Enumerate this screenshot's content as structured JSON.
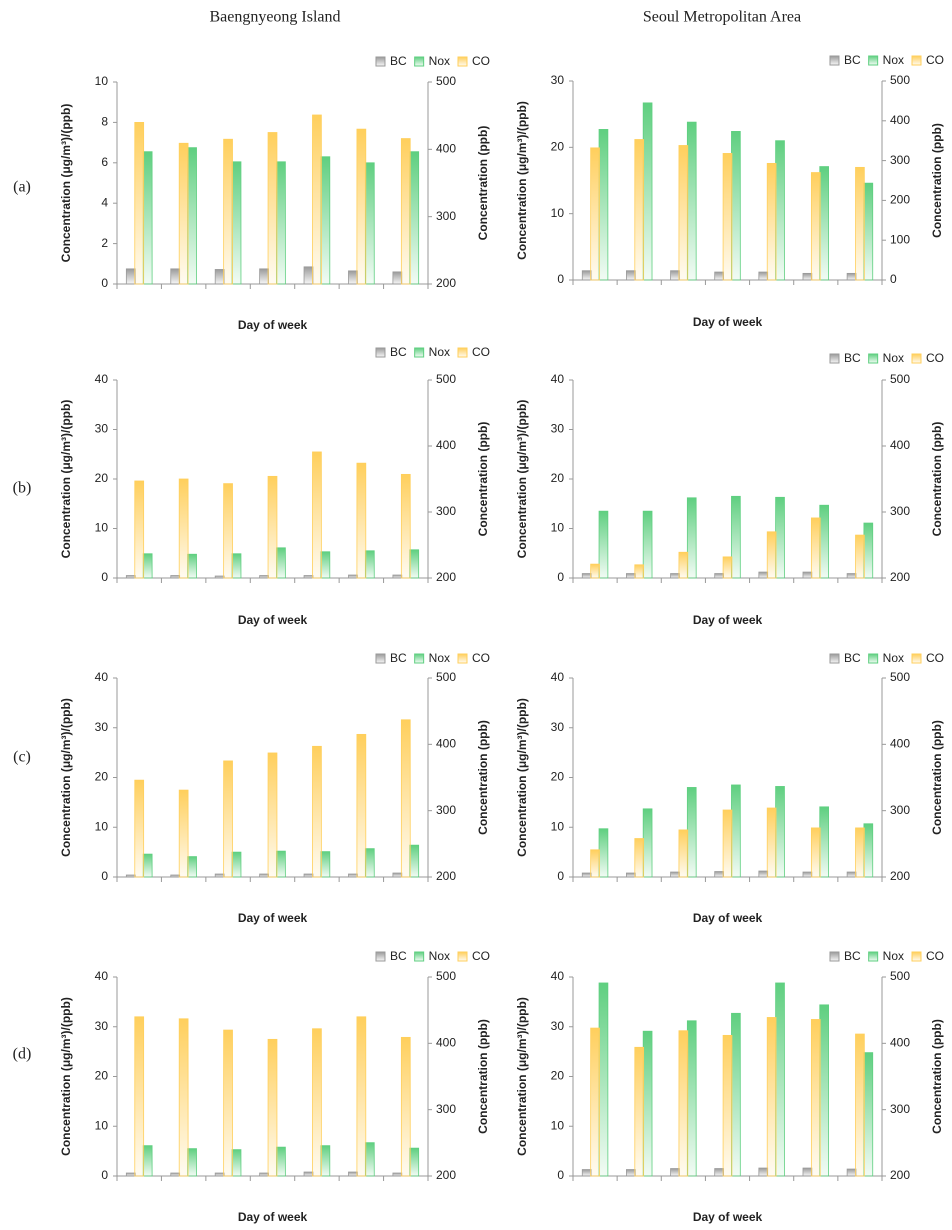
{
  "column_titles": [
    "Baengnyeong Island",
    "Seoul Metropolitan Area"
  ],
  "row_labels": [
    "(a)",
    "(b)",
    "(c)",
    "(d)"
  ],
  "chart_data": [
    {
      "type": "bar",
      "categories": [
        null,
        null,
        null,
        null,
        null,
        null,
        null
      ],
      "x_label": "Day of week",
      "y_label": "Concentration (μg/m³)/(ppb)",
      "y2_label": "Concentration (ppb)",
      "ylim": [
        0,
        10
      ],
      "yticks": [
        0,
        2,
        4,
        6,
        8,
        10
      ],
      "y2lim": [
        200,
        500
      ],
      "y2ticks": [
        200,
        300,
        400,
        500
      ],
      "series": [
        {
          "name": "BC",
          "color": "#9a9a9a",
          "values": [
            0.75,
            0.75,
            0.72,
            0.75,
            0.85,
            0.65,
            0.6
          ]
        },
        {
          "name": "Nox",
          "color": "#5fcf80",
          "values": [
            6.55,
            6.75,
            6.05,
            6.05,
            6.3,
            6.0,
            6.55
          ]
        },
        {
          "name": "CO",
          "color": "#ffcf5c",
          "axis": "y2",
          "values": [
            440,
            409,
            415,
            425,
            451,
            430,
            416
          ]
        }
      ]
    },
    {
      "type": "bar",
      "categories": [
        null,
        null,
        null,
        null,
        null,
        null,
        null
      ],
      "x_label": "Day of week",
      "y_label": "Concentration (μg/m³)/(ppb)",
      "y2_label": "Concentration (ppb)",
      "ylim": [
        0,
        30
      ],
      "yticks": [
        0,
        10,
        20,
        30
      ],
      "y2lim": [
        0,
        500
      ],
      "y2ticks": [
        0,
        100,
        200,
        300,
        400,
        500
      ],
      "series": [
        {
          "name": "BC",
          "color": "#9a9a9a",
          "values": [
            1.4,
            1.4,
            1.4,
            1.2,
            1.2,
            1.0,
            1.0
          ]
        },
        {
          "name": "Nox",
          "color": "#5fcf80",
          "values": [
            22.7,
            26.7,
            23.8,
            22.4,
            21.0,
            17.1,
            14.6
          ]
        },
        {
          "name": "CO",
          "color": "#ffcf5c",
          "axis": "y2",
          "values": [
            332,
            353,
            338,
            318,
            293,
            270,
            283
          ]
        }
      ]
    },
    {
      "type": "bar",
      "categories": [
        null,
        null,
        null,
        null,
        null,
        null,
        null
      ],
      "x_label": "Day of week",
      "y_label": "Concentration (μg/m³)/(ppb)",
      "y2_label": "Concentration (ppb)",
      "ylim": [
        0,
        40
      ],
      "yticks": [
        0,
        10,
        20,
        30,
        40
      ],
      "y2lim": [
        200,
        500
      ],
      "y2ticks": [
        200,
        300,
        400,
        500
      ],
      "series": [
        {
          "name": "BC",
          "color": "#9a9a9a",
          "values": [
            0.5,
            0.5,
            0.4,
            0.5,
            0.5,
            0.6,
            0.6
          ]
        },
        {
          "name": "Nox",
          "color": "#5fcf80",
          "values": [
            4.9,
            4.8,
            4.9,
            6.1,
            5.3,
            5.5,
            5.7
          ]
        },
        {
          "name": "CO",
          "color": "#ffcf5c",
          "axis": "y2",
          "values": [
            347,
            350,
            343,
            354,
            391,
            374,
            357
          ]
        }
      ]
    },
    {
      "type": "bar",
      "categories": [
        null,
        null,
        null,
        null,
        null,
        null,
        null
      ],
      "x_label": "Day of week",
      "y_label": "Concentration (μg/m³)/(ppb)",
      "y2_label": "Concentration (ppb)",
      "ylim": [
        0,
        40
      ],
      "yticks": [
        0,
        10,
        20,
        30,
        40
      ],
      "y2lim": [
        200,
        500
      ],
      "y2ticks": [
        200,
        300,
        400,
        500
      ],
      "series": [
        {
          "name": "BC",
          "color": "#9a9a9a",
          "values": [
            0.9,
            0.9,
            0.9,
            0.9,
            1.2,
            1.2,
            0.9
          ]
        },
        {
          "name": "Nox",
          "color": "#5fcf80",
          "values": [
            13.5,
            13.5,
            16.2,
            16.5,
            16.3,
            14.7,
            11.1
          ]
        },
        {
          "name": "CO",
          "color": "#ffcf5c",
          "axis": "y2",
          "values": [
            221,
            220,
            239,
            232,
            270,
            291,
            265
          ]
        }
      ]
    },
    {
      "type": "bar",
      "categories": [
        null,
        null,
        null,
        null,
        null,
        null,
        null
      ],
      "x_label": "Day of week",
      "y_label": "Concentration (μg/m³)/(ppb)",
      "y2_label": "Concentration (ppb)",
      "ylim": [
        0,
        40
      ],
      "yticks": [
        0,
        10,
        20,
        30,
        40
      ],
      "y2lim": [
        200,
        500
      ],
      "y2ticks": [
        200,
        300,
        400,
        500
      ],
      "series": [
        {
          "name": "BC",
          "color": "#9a9a9a",
          "values": [
            0.4,
            0.4,
            0.6,
            0.6,
            0.6,
            0.6,
            0.8
          ]
        },
        {
          "name": "Nox",
          "color": "#5fcf80",
          "values": [
            4.6,
            4.1,
            5.0,
            5.2,
            5.1,
            5.7,
            6.4
          ]
        },
        {
          "name": "CO",
          "color": "#ffcf5c",
          "axis": "y2",
          "values": [
            346,
            331,
            375,
            387,
            397,
            415,
            437
          ]
        }
      ]
    },
    {
      "type": "bar",
      "categories": [
        null,
        null,
        null,
        null,
        null,
        null,
        null
      ],
      "x_label": "Day of week",
      "y_label": "Concentration (μg/m³)/(ppb)",
      "y2_label": "Concentration (ppb)",
      "ylim": [
        0,
        40
      ],
      "yticks": [
        0,
        10,
        20,
        30,
        40
      ],
      "y2lim": [
        200,
        500
      ],
      "y2ticks": [
        200,
        300,
        400,
        500
      ],
      "series": [
        {
          "name": "BC",
          "color": "#9a9a9a",
          "values": [
            0.8,
            0.8,
            1.0,
            1.1,
            1.2,
            1.0,
            1.0
          ]
        },
        {
          "name": "Nox",
          "color": "#5fcf80",
          "values": [
            9.7,
            13.7,
            18.0,
            18.5,
            18.2,
            14.1,
            10.7
          ]
        },
        {
          "name": "CO",
          "color": "#ffcf5c",
          "axis": "y2",
          "values": [
            241,
            258,
            271,
            301,
            304,
            274,
            274
          ]
        }
      ]
    },
    {
      "type": "bar",
      "categories": [
        null,
        null,
        null,
        null,
        null,
        null,
        null
      ],
      "x_label": "Day of week",
      "y_label": "Concentration (μg/m³)/(ppb)",
      "y2_label": "Concentration (ppb)",
      "ylim": [
        0,
        40
      ],
      "yticks": [
        0,
        10,
        20,
        30,
        40
      ],
      "y2lim": [
        200,
        500
      ],
      "y2ticks": [
        200,
        300,
        400,
        500
      ],
      "series": [
        {
          "name": "BC",
          "color": "#9a9a9a",
          "values": [
            0.6,
            0.6,
            0.6,
            0.6,
            0.8,
            0.8,
            0.6
          ]
        },
        {
          "name": "Nox",
          "color": "#5fcf80",
          "values": [
            6.1,
            5.5,
            5.3,
            5.8,
            6.1,
            6.7,
            5.6
          ]
        },
        {
          "name": "CO",
          "color": "#ffcf5c",
          "axis": "y2",
          "values": [
            440,
            437,
            420,
            406,
            422,
            440,
            409
          ]
        }
      ]
    },
    {
      "type": "bar",
      "categories": [
        null,
        null,
        null,
        null,
        null,
        null,
        null
      ],
      "x_label": "Day of week",
      "y_label": "Concentration (μg/m³)/(ppb)",
      "y2_label": "Concentration (ppb)",
      "ylim": [
        0,
        40
      ],
      "yticks": [
        0,
        10,
        20,
        30,
        40
      ],
      "y2lim": [
        200,
        500
      ],
      "y2ticks": [
        200,
        300,
        400,
        500
      ],
      "series": [
        {
          "name": "BC",
          "color": "#9a9a9a",
          "values": [
            1.3,
            1.3,
            1.5,
            1.5,
            1.6,
            1.6,
            1.4
          ]
        },
        {
          "name": "Nox",
          "color": "#5fcf80",
          "values": [
            38.8,
            29.1,
            31.2,
            32.7,
            38.8,
            34.4,
            24.8
          ]
        },
        {
          "name": "CO",
          "color": "#ffcf5c",
          "axis": "y2",
          "values": [
            423,
            394,
            419,
            412,
            439,
            436,
            414
          ]
        }
      ]
    }
  ]
}
